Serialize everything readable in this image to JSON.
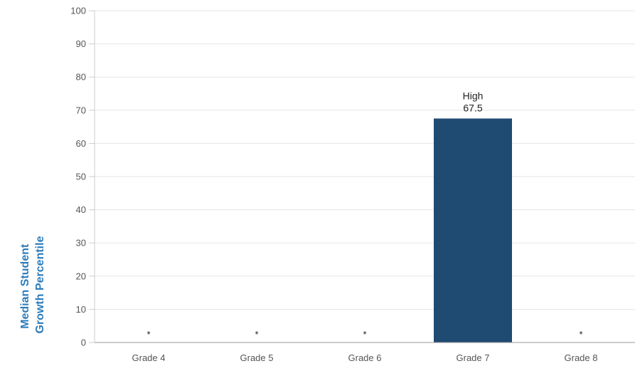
{
  "chart_data": {
    "type": "bar",
    "title": "",
    "xlabel": "",
    "ylabel_lines": [
      "Median Student",
      "Growth Percentile"
    ],
    "categories": [
      "Grade 4",
      "Grade 5",
      "Grade 6",
      "Grade 7",
      "Grade 8"
    ],
    "values": [
      null,
      null,
      null,
      67.5,
      null
    ],
    "data_labels": [
      {
        "category": "Grade 4",
        "lines": [
          "*"
        ]
      },
      {
        "category": "Grade 5",
        "lines": [
          "*"
        ]
      },
      {
        "category": "Grade 6",
        "lines": [
          "*"
        ]
      },
      {
        "category": "Grade 7",
        "lines": [
          "High",
          "67.5"
        ]
      },
      {
        "category": "Grade 8",
        "lines": [
          "*"
        ]
      }
    ],
    "ylim": [
      0,
      100
    ],
    "yticks": [
      0,
      10,
      20,
      30,
      40,
      50,
      60,
      70,
      80,
      90,
      100
    ],
    "grid": true,
    "bar_color": "#1f4a72",
    "grid_color": "#e6e6e6",
    "axis_label_color": "#2b7bb9"
  }
}
